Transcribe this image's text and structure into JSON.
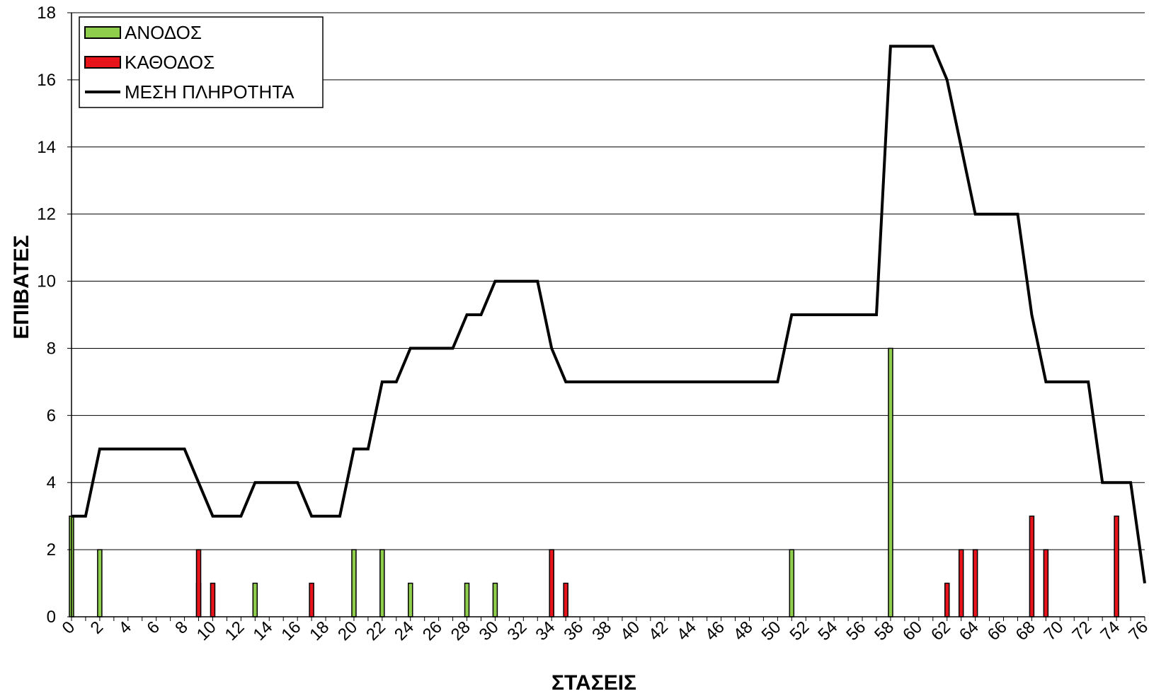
{
  "chart_data": {
    "type": "bar",
    "xlabel": "ΣΤΑΣΕΙΣ",
    "ylabel": "ΕΠΙΒΑΤΕΣ",
    "xlim": [
      0,
      76
    ],
    "ylim": [
      0,
      18
    ],
    "y_ticks": [
      0,
      2,
      4,
      6,
      8,
      10,
      12,
      14,
      16,
      18
    ],
    "x_ticks": [
      0,
      2,
      4,
      6,
      8,
      10,
      12,
      14,
      16,
      18,
      20,
      22,
      24,
      26,
      28,
      30,
      32,
      34,
      36,
      38,
      40,
      42,
      44,
      46,
      48,
      50,
      52,
      54,
      56,
      58,
      60,
      62,
      64,
      66,
      68,
      70,
      72,
      74,
      76
    ],
    "grid": true,
    "legend_position": "top-left",
    "series": [
      {
        "name": "ΑΝΟΔΟΣ",
        "kind": "bar",
        "color": "#8fce4c",
        "points": [
          [
            0,
            3
          ],
          [
            2,
            2
          ],
          [
            9,
            1
          ],
          [
            13,
            1
          ],
          [
            20,
            2
          ],
          [
            22,
            2
          ],
          [
            24,
            1
          ],
          [
            28,
            1
          ],
          [
            30,
            1
          ],
          [
            51,
            2
          ],
          [
            58,
            8
          ]
        ]
      },
      {
        "name": "ΚΑΘΟΔΟΣ",
        "kind": "bar",
        "color": "#e8141c",
        "points": [
          [
            9,
            2
          ],
          [
            10,
            1
          ],
          [
            17,
            1
          ],
          [
            34,
            2
          ],
          [
            35,
            1
          ],
          [
            62,
            1
          ],
          [
            63,
            2
          ],
          [
            64,
            2
          ],
          [
            68,
            3
          ],
          [
            69,
            2
          ],
          [
            74,
            3
          ]
        ]
      },
      {
        "name": "ΜΕΣΗ ΠΛΗΡΟΤΗΤΑ",
        "kind": "line",
        "color": "#000000",
        "points": [
          [
            0,
            3
          ],
          [
            1,
            3
          ],
          [
            2,
            5
          ],
          [
            8,
            5
          ],
          [
            9,
            4
          ],
          [
            10,
            3
          ],
          [
            12,
            3
          ],
          [
            13,
            4
          ],
          [
            16,
            4
          ],
          [
            17,
            3
          ],
          [
            19,
            3
          ],
          [
            20,
            5
          ],
          [
            21,
            5
          ],
          [
            22,
            7
          ],
          [
            23,
            7
          ],
          [
            24,
            8
          ],
          [
            27,
            8
          ],
          [
            28,
            9
          ],
          [
            29,
            9
          ],
          [
            30,
            10
          ],
          [
            33,
            10
          ],
          [
            34,
            8
          ],
          [
            35,
            7
          ],
          [
            50,
            7
          ],
          [
            51,
            9
          ],
          [
            57,
            9
          ],
          [
            58,
            17
          ],
          [
            61,
            17
          ],
          [
            62,
            16
          ],
          [
            63,
            14
          ],
          [
            64,
            12
          ],
          [
            67,
            12
          ],
          [
            68,
            9
          ],
          [
            69,
            7
          ],
          [
            72,
            7
          ],
          [
            73,
            4
          ],
          [
            75,
            4
          ],
          [
            76,
            1
          ]
        ]
      }
    ]
  }
}
